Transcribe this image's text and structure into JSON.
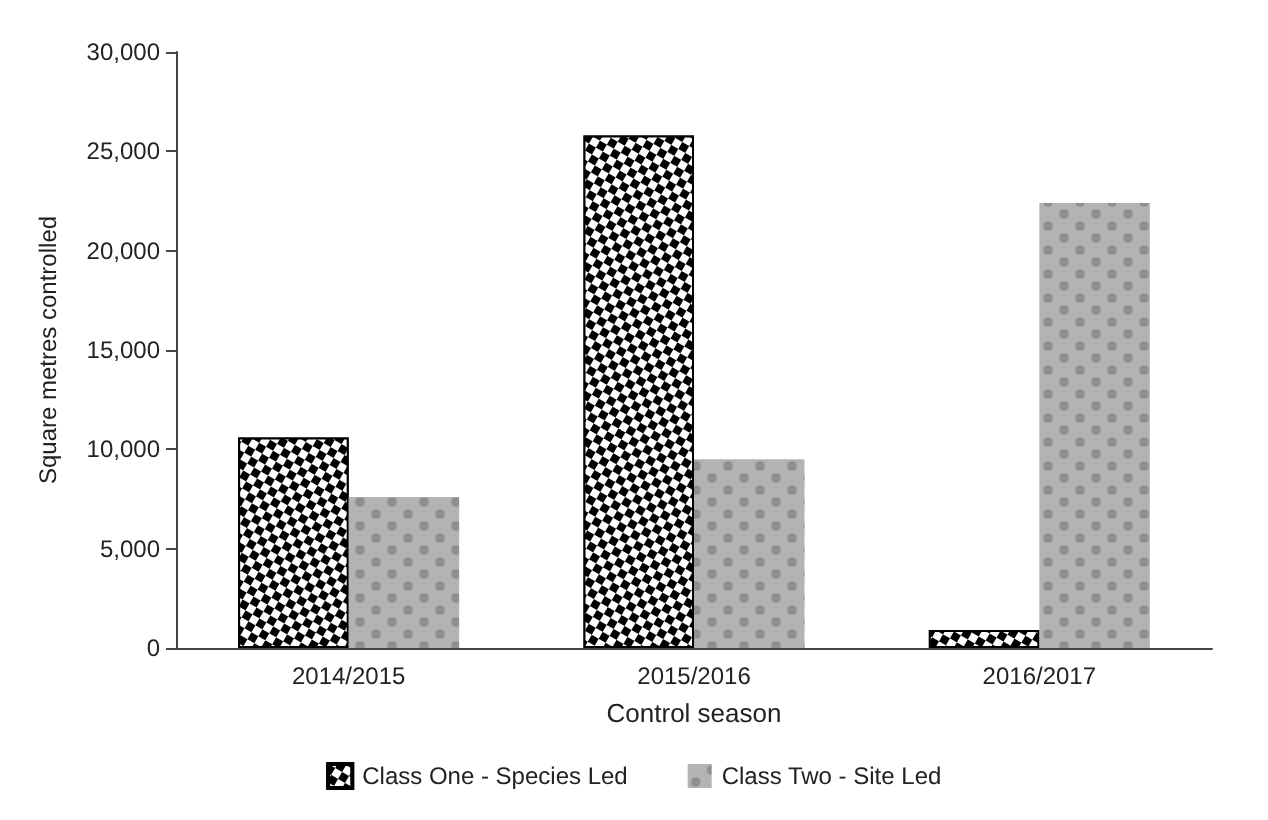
{
  "chart_data": {
    "type": "bar",
    "xlabel": "Control season",
    "ylabel": "Square metres controlled",
    "categories": [
      "2014/2015",
      "2015/2016",
      "2016/2017"
    ],
    "series": [
      {
        "name": "Class One - Species Led",
        "color": "#000000",
        "values": [
          10600,
          25800,
          900
        ]
      },
      {
        "name": "Class Two - Site Led",
        "color": "#b3b3b3",
        "values": [
          7600,
          9500,
          22400
        ]
      }
    ],
    "ylim": [
      0,
      30000
    ],
    "yticks": [
      0,
      {
        "value": 5000,
        "label": "5,000"
      },
      {
        "value": 10000,
        "label": "10,000"
      },
      {
        "value": 15000,
        "label": "15,000"
      },
      {
        "value": 20000,
        "label": "20,000"
      },
      {
        "value": 25000,
        "label": "25,000"
      },
      {
        "value": 30000,
        "label": "30,000"
      }
    ],
    "grid": false,
    "legend": "bottom"
  }
}
